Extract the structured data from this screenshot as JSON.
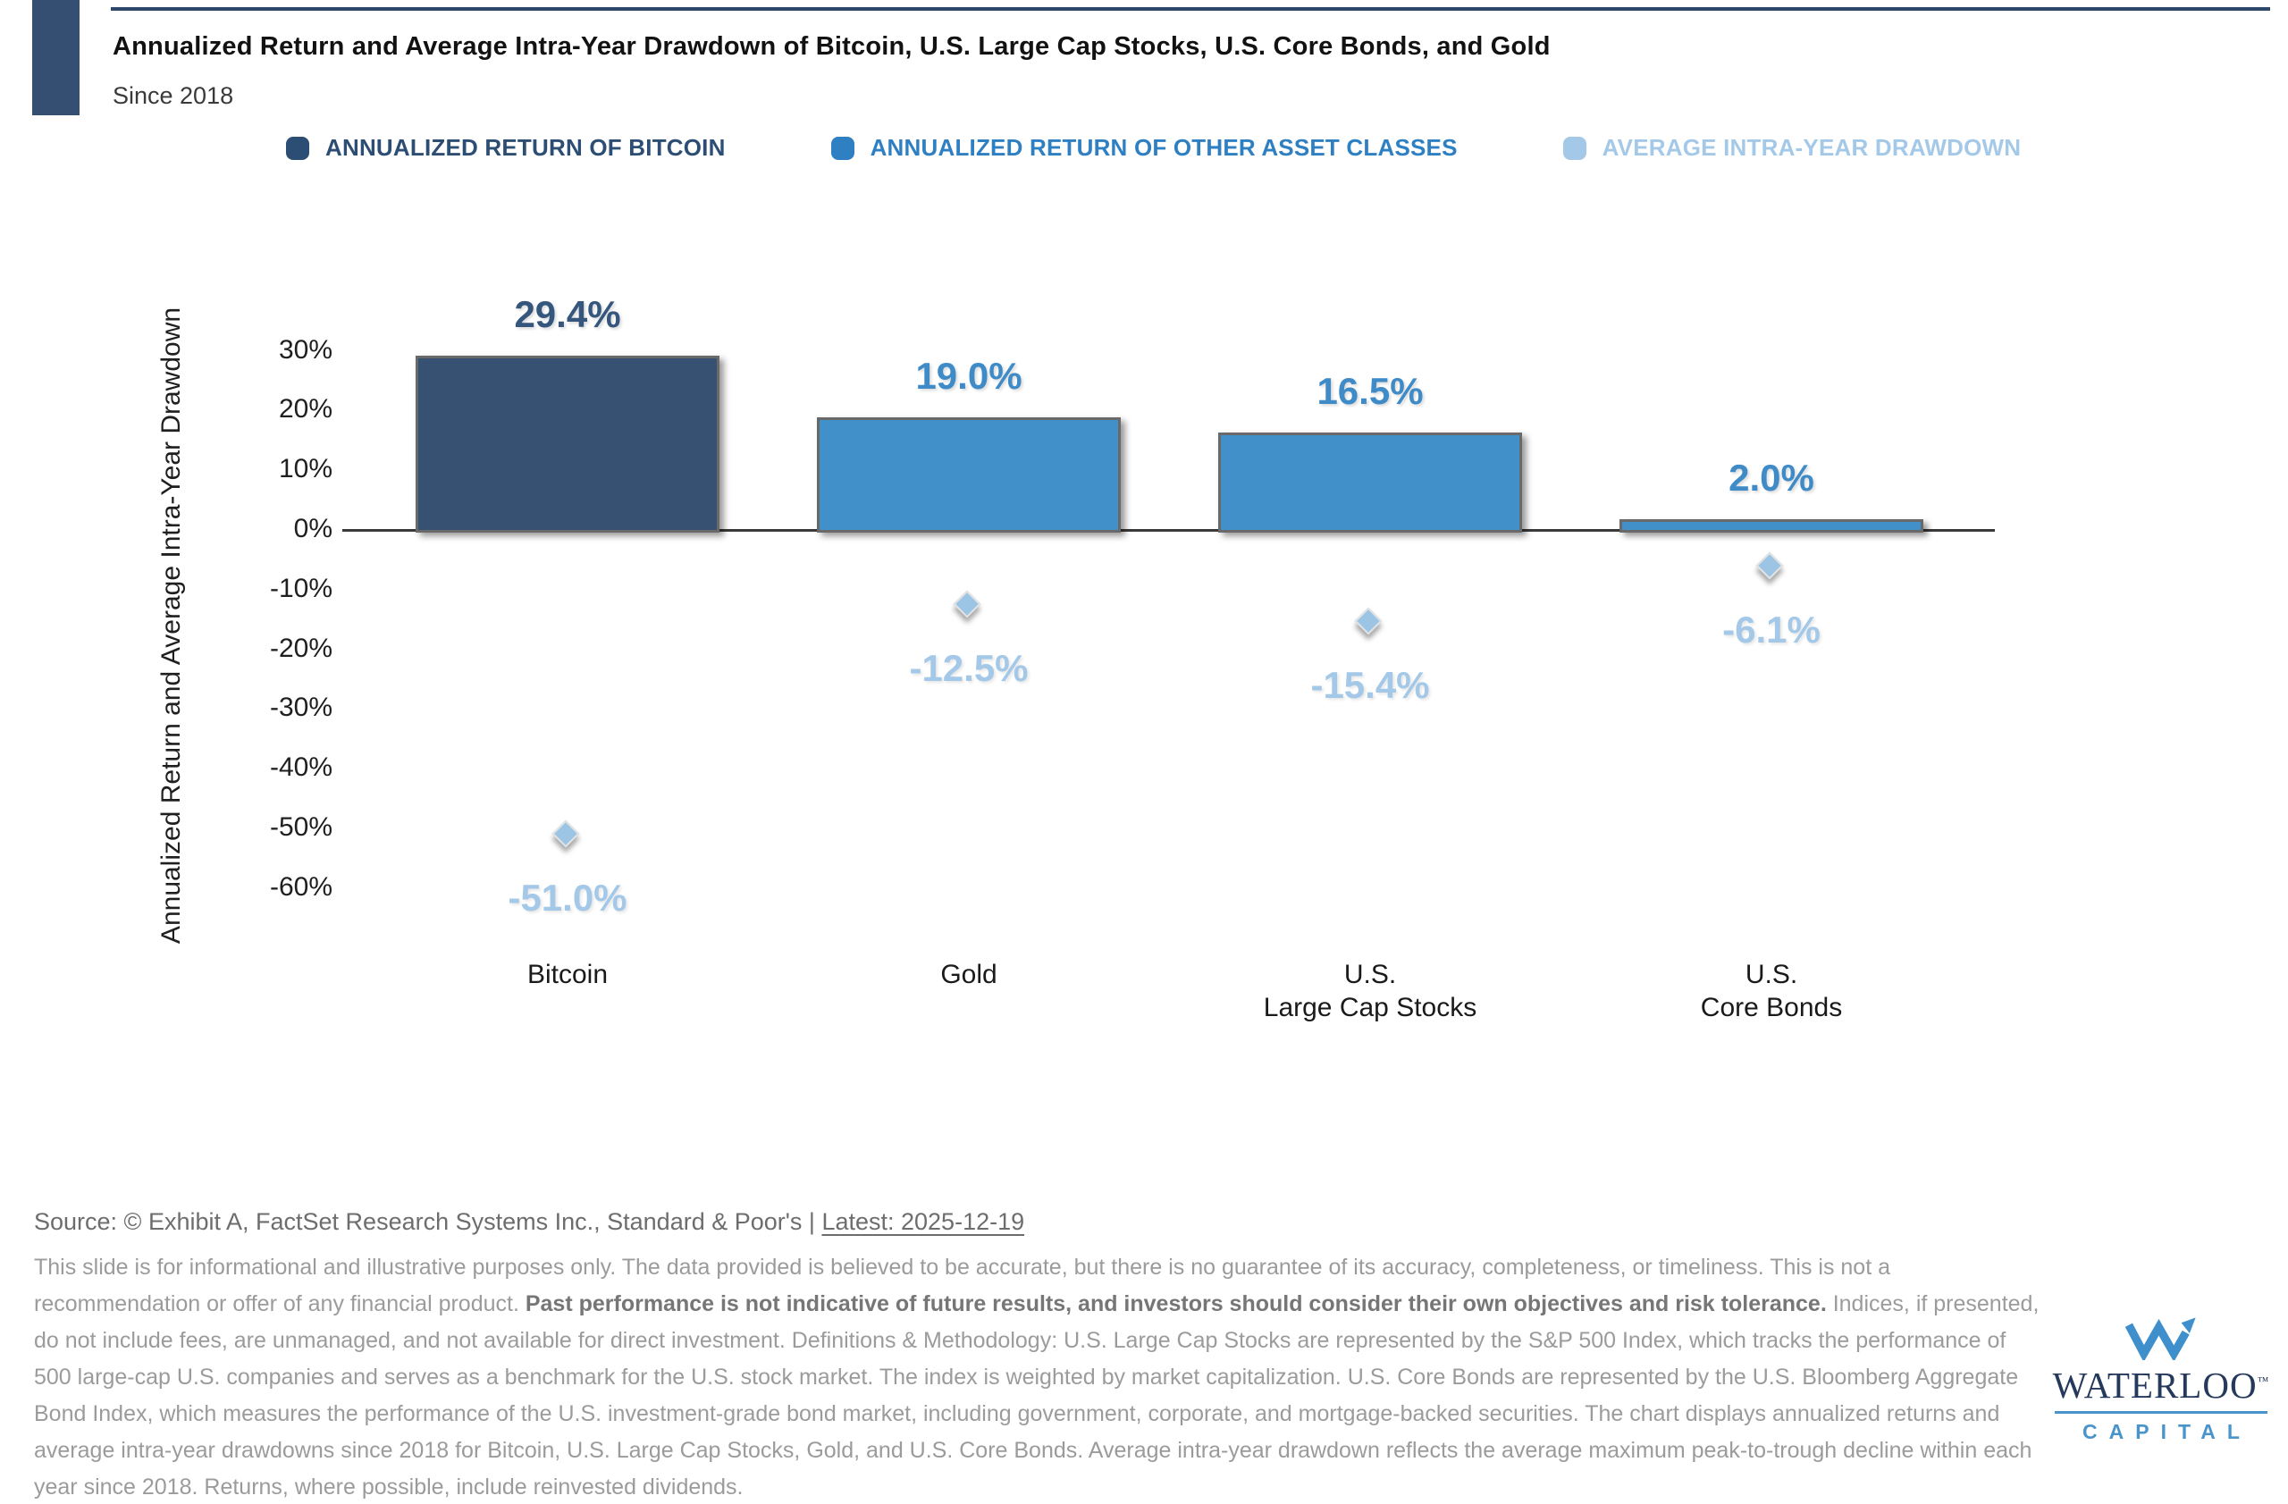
{
  "header": {
    "title": "Annualized Return and Average Intra-Year Drawdown of Bitcoin, U.S. Large Cap Stocks, U.S. Core Bonds, and Gold",
    "subtitle": "Since 2018"
  },
  "legend": [
    {
      "label": "ANNUALIZED RETURN OF BITCOIN",
      "color": "#2d4e74"
    },
    {
      "label": "ANNUALIZED RETURN OF OTHER ASSET CLASSES",
      "color": "#2f80c3"
    },
    {
      "label": "AVERAGE INTRA-YEAR DRAWDOWN",
      "color": "#a4c9e8"
    }
  ],
  "chart_data": {
    "type": "bar",
    "title": "Annualized Return and Average Intra-Year Drawdown of Bitcoin, U.S. Large Cap Stocks, U.S. Core Bonds, and Gold",
    "subtitle": "Since 2018",
    "ylabel": "Annualized Return and Average Intra-Year Drawdown",
    "yticks": [
      30,
      20,
      10,
      0,
      -10,
      -20,
      -30,
      -40,
      -50,
      -60
    ],
    "ylim": [
      -65,
      38
    ],
    "grid": false,
    "legend_position": "top",
    "categories": [
      "Bitcoin",
      "Gold",
      "U.S. Large Cap Stocks",
      "U.S. Core Bonds"
    ],
    "category_lines": [
      [
        "Bitcoin"
      ],
      [
        "Gold"
      ],
      [
        "U.S.",
        "Large Cap Stocks"
      ],
      [
        "U.S.",
        "Core Bonds"
      ]
    ],
    "series": [
      {
        "name": "Annualized Return",
        "values": [
          29.4,
          19.0,
          16.5,
          2.0
        ],
        "labels": [
          "29.4%",
          "19.0%",
          "16.5%",
          "2.0%"
        ],
        "bar_colors": [
          "#375172",
          "#4290c9",
          "#4290c9",
          "#4290c9"
        ],
        "label_colors": [
          "#35577e",
          "#3e8bc8",
          "#3e8bc8",
          "#3e8bc8"
        ]
      },
      {
        "name": "Average Intra-Year Drawdown",
        "values": [
          -51.0,
          -12.5,
          -15.4,
          -6.1
        ],
        "labels": [
          "-51.0%",
          "-12.5%",
          "-15.4%",
          "-6.1%"
        ],
        "marker_color": "#9cc5e5",
        "label_color": "#a3c8e8"
      }
    ]
  },
  "footer": {
    "source_prefix": "Source: © Exhibit A, FactSet Research Systems Inc., Standard & Poor's | ",
    "source_latest": "Latest: 2025-12-19",
    "disclaimer_1": "This slide is for informational and illustrative purposes only. The data provided is believed to be accurate, but there is no guarantee of its accuracy, completeness, or timeliness. This is not a recommendation or offer of any financial product. ",
    "disclaimer_bold": "Past performance is not indicative of future results, and investors should consider their own objectives and risk tolerance.",
    "disclaimer_2": " Indices, if presented, do not include fees, are unmanaged, and not available for direct investment. Definitions & Methodology: U.S. Large Cap Stocks are represented by the S&P 500 Index, which tracks the performance of 500 large-cap U.S. companies and serves as a benchmark for the U.S. stock market. The index is weighted by market capitalization. U.S. Core Bonds are represented by the U.S. Bloomberg Aggregate Bond Index, which measures the performance of the U.S. investment-grade bond market, including government, corporate, and mortgage-backed securities. The chart displays annualized returns and average intra-year drawdowns since 2018 for Bitcoin, U.S. Large Cap Stocks, Gold, and U.S. Core Bonds. Average intra-year drawdown reflects the average maximum peak-to-trough decline within each year since 2018. Returns, where possible, include reinvested dividends."
  },
  "logo": {
    "wordmark": "WATERLOO",
    "tm": "™",
    "subtext": "CAPITAL",
    "mark_color": "#3e8fcc",
    "word_color": "#24395c",
    "sub_color": "#4a94cc"
  }
}
